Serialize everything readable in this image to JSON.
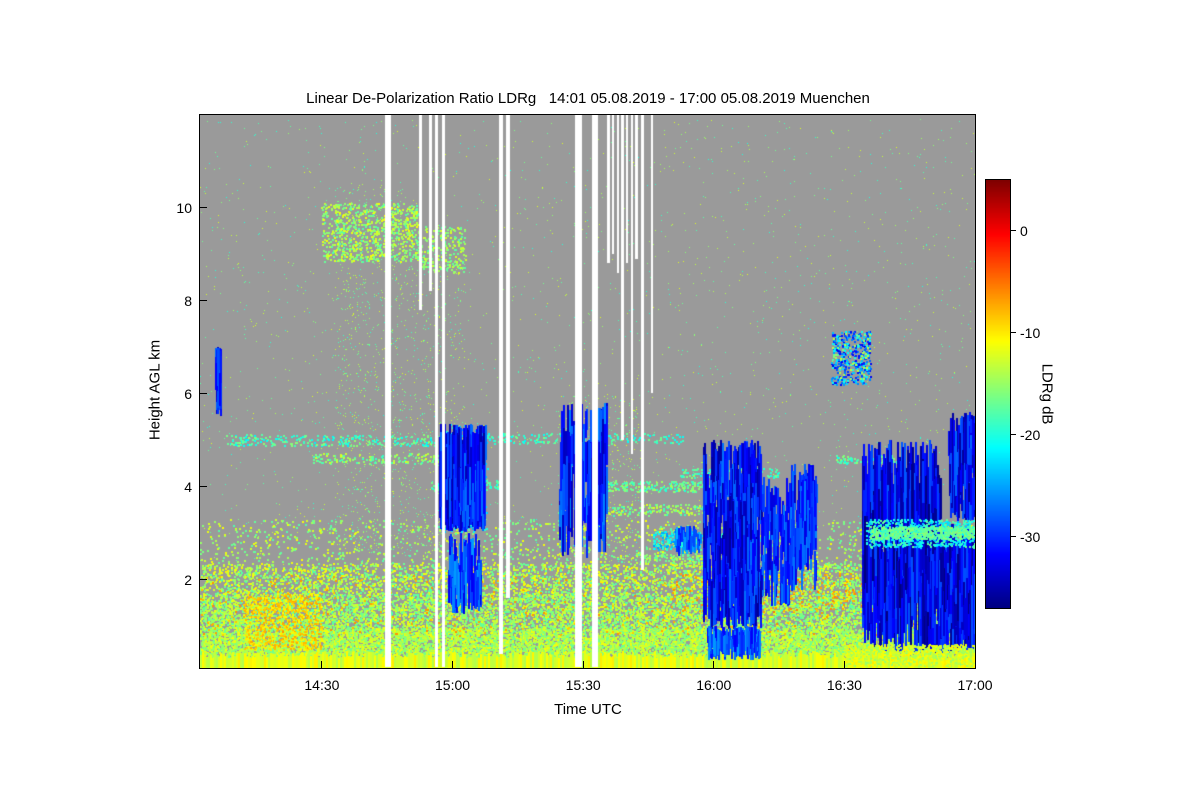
{
  "chart_data": {
    "type": "heatmap",
    "title": "Linear De-Polarization Ratio LDRg   14:01 05.08.2019 - 17:00 05.08.2019 Muenchen",
    "instrument_quantity": "Linear De-Polarization Ratio LDRg",
    "time_start": "14:01 05.08.2019",
    "time_end": "17:00 05.08.2019",
    "station": "Muenchen",
    "xlabel": "Time UTC",
    "ylabel": "Height AGL km",
    "x_axis": {
      "range_minutes": [
        2,
        180
      ],
      "ticks": [
        {
          "label": "14:30",
          "min": 30
        },
        {
          "label": "15:00",
          "min": 60
        },
        {
          "label": "15:30",
          "min": 90
        },
        {
          "label": "16:00",
          "min": 120
        },
        {
          "label": "16:30",
          "min": 150
        },
        {
          "label": "17:00",
          "min": 180
        }
      ]
    },
    "y_axis": {
      "range_km": [
        0.1,
        12.0
      ],
      "ticks": [
        {
          "label": "2",
          "km": 2
        },
        {
          "label": "4",
          "km": 4
        },
        {
          "label": "6",
          "km": 6
        },
        {
          "label": "8",
          "km": 8
        },
        {
          "label": "10",
          "km": 10
        }
      ]
    },
    "colorbar": {
      "label": "LDRg dB",
      "unit": "dB",
      "colormap": "jet",
      "vmin": -37,
      "vmax": 5,
      "ticks": [
        {
          "label": "0",
          "value": 0
        },
        {
          "label": "-10",
          "value": -10
        },
        {
          "label": "-20",
          "value": -20
        },
        {
          "label": "-30",
          "value": -30
        }
      ]
    },
    "no_data_color": "#9a9a9a",
    "gap_color": "#ffffff",
    "features": {
      "base_strip": {
        "t": [
          2,
          180
        ],
        "h": [
          0.1,
          0.3
        ],
        "v": [
          -14,
          -10
        ]
      },
      "speckle": [
        {
          "name": "boundary-layer-low",
          "t": [
            2,
            180
          ],
          "h": [
            0.25,
            0.95
          ],
          "v": [
            -17,
            -11
          ],
          "n": 13000,
          "size": 2
        },
        {
          "name": "boundary-layer-mid",
          "t": [
            2,
            180
          ],
          "h": [
            0.95,
            1.7
          ],
          "v": [
            -18,
            -11
          ],
          "n": 7500,
          "size": 2
        },
        {
          "name": "boundary-layer-top",
          "t": [
            2,
            180
          ],
          "h": [
            1.7,
            2.35
          ],
          "v": [
            -18,
            -10
          ],
          "n": 3800,
          "size": 2
        },
        {
          "name": "orange-patch-1415",
          "t": [
            12,
            30
          ],
          "h": [
            0.5,
            1.7
          ],
          "v": [
            -11,
            -7
          ],
          "n": 650,
          "size": 2
        },
        {
          "name": "orange-specks",
          "t": [
            2,
            180
          ],
          "h": [
            0.8,
            2.1
          ],
          "v": [
            -9,
            -6
          ],
          "n": 420,
          "size": 2
        },
        {
          "name": "orange-specks-16h",
          "t": [
            110,
            166
          ],
          "h": [
            1.3,
            2.15
          ],
          "v": [
            -9,
            -5
          ],
          "n": 240,
          "size": 2
        },
        {
          "name": "residual-layer",
          "t": [
            2,
            180
          ],
          "h": [
            2.35,
            3.3
          ],
          "v": [
            -18,
            -11
          ],
          "n": 1300,
          "size": 2
        },
        {
          "name": "clear-air",
          "t": [
            2,
            180
          ],
          "h": [
            0.5,
            11.9
          ],
          "v": [
            -20,
            -12
          ],
          "n": 2600,
          "size": 1
        },
        {
          "name": "column-1435",
          "t": [
            33,
            50
          ],
          "h": [
            2.5,
            10.5
          ],
          "v": [
            -19,
            -12
          ],
          "n": 850,
          "size": 1
        },
        {
          "name": "column-1455",
          "t": [
            50,
            63
          ],
          "h": [
            2.5,
            9.0
          ],
          "v": [
            -19,
            -12
          ],
          "n": 420,
          "size": 1
        },
        {
          "name": "column-1535",
          "t": [
            84,
            104
          ],
          "h": [
            2.4,
            6.0
          ],
          "v": [
            -19,
            -12
          ],
          "n": 480,
          "size": 1
        },
        {
          "name": "patch-9km",
          "t": [
            30,
            52
          ],
          "h": [
            8.85,
            10.1
          ],
          "v": [
            -18,
            -11
          ],
          "n": 800,
          "size": 2
        },
        {
          "name": "patch-9km-b",
          "t": [
            52,
            63
          ],
          "h": [
            8.6,
            9.6
          ],
          "v": [
            -18,
            -12
          ],
          "n": 240,
          "size": 2
        },
        {
          "name": "cloud-edge-1500",
          "t": [
            57,
            68
          ],
          "h": [
            3.0,
            5.35
          ],
          "v": [
            -25,
            -19
          ],
          "n": 240,
          "size": 2
        },
        {
          "name": "patch-7km-1630",
          "t": [
            147,
            156
          ],
          "h": [
            6.2,
            7.35
          ],
          "v": [
            -33,
            -20
          ],
          "n": 400,
          "size": 2
        },
        {
          "name": "patch-7km-green",
          "t": [
            147,
            156
          ],
          "h": [
            6.3,
            7.3
          ],
          "v": [
            -18,
            -12
          ],
          "n": 55,
          "size": 2
        },
        {
          "name": "pre1600-cyan",
          "t": [
            106,
            117
          ],
          "h": [
            2.65,
            3.05
          ],
          "v": [
            -26,
            -18
          ],
          "n": 200,
          "size": 2
        }
      ],
      "layers": [
        {
          "name": "layer-5km-a",
          "t": [
            8,
            56
          ],
          "h": [
            4.88,
            5.12
          ],
          "v": [
            -22,
            -15
          ],
          "n": 250,
          "size": 2
        },
        {
          "name": "layer-5km-b",
          "t": [
            56,
            113
          ],
          "h": [
            4.92,
            5.15
          ],
          "v": [
            -22,
            -16
          ],
          "n": 190,
          "size": 2
        },
        {
          "name": "layer-4p6km",
          "t": [
            28,
            61
          ],
          "h": [
            4.5,
            4.72
          ],
          "v": [
            -19,
            -12
          ],
          "n": 160,
          "size": 2
        },
        {
          "name": "layer-4p6km-b",
          "t": [
            148,
            164
          ],
          "h": [
            4.5,
            4.68
          ],
          "v": [
            -21,
            -15
          ],
          "n": 110,
          "size": 2
        },
        {
          "name": "layer-4km-a",
          "t": [
            55,
            71
          ],
          "h": [
            3.93,
            4.15
          ],
          "v": [
            -21,
            -16
          ],
          "n": 140,
          "size": 2
        },
        {
          "name": "layer-4km-b",
          "t": [
            94,
            123
          ],
          "h": [
            3.9,
            4.12
          ],
          "v": [
            -20,
            -14
          ],
          "n": 230,
          "size": 2
        },
        {
          "name": "layer-4p3km",
          "t": [
            112,
            135
          ],
          "h": [
            4.2,
            4.4
          ],
          "v": [
            -21,
            -15
          ],
          "n": 120,
          "size": 2
        },
        {
          "name": "layer-3p5km",
          "t": [
            92,
            127
          ],
          "h": [
            3.38,
            3.62
          ],
          "v": [
            -19,
            -12
          ],
          "n": 250,
          "size": 2
        },
        {
          "name": "layer-2p9km",
          "t": [
            113,
            135
          ],
          "h": [
            2.8,
            3.0
          ],
          "v": [
            -22,
            -16
          ],
          "n": 130,
          "size": 2
        },
        {
          "name": "layer-2p5km",
          "t": [
            103,
            118
          ],
          "h": [
            2.35,
            2.55
          ],
          "v": [
            -18,
            -12
          ],
          "n": 100,
          "size": 2
        }
      ],
      "clouds": [
        {
          "name": "virga-1405",
          "t": [
            5.6,
            6.8
          ],
          "h": [
            5.5,
            7.0
          ],
          "v": [
            -34,
            -27
          ],
          "n": 70,
          "len": [
            0.3,
            0.9
          ],
          "w": 2
        },
        {
          "name": "cloud-1500",
          "t": [
            57,
            67.5
          ],
          "h": [
            3.0,
            5.35
          ],
          "v": [
            -36,
            -27
          ],
          "n": 420,
          "len": [
            0.3,
            1.4
          ],
          "w": 2
        },
        {
          "name": "cloud-1500-tails",
          "t": [
            59,
            66.5
          ],
          "h": [
            1.25,
            3.0
          ],
          "v": [
            -33,
            -25
          ],
          "n": 120,
          "len": [
            0.3,
            0.9
          ],
          "w": 2
        },
        {
          "name": "cloud-1530",
          "t": [
            84.5,
            95.5
          ],
          "h": [
            2.4,
            5.8
          ],
          "v": [
            -35,
            -26
          ],
          "n": 180,
          "len": [
            0.4,
            1.5
          ],
          "w": 2
        },
        {
          "name": "cloud-1600",
          "t": [
            117.5,
            131
          ],
          "h": [
            0.9,
            5.0
          ],
          "v": [
            -36,
            -27
          ],
          "n": 460,
          "len": [
            0.3,
            1.3
          ],
          "w": 2
        },
        {
          "name": "cloud-1600-tails",
          "t": [
            118.5,
            130.5
          ],
          "h": [
            0.25,
            1.0
          ],
          "v": [
            -32,
            -25
          ],
          "n": 130,
          "len": [
            0.2,
            0.6
          ],
          "w": 2
        },
        {
          "name": "cloud-1600-edge",
          "t": [
            131,
            137.5
          ],
          "h": [
            1.4,
            4.2
          ],
          "v": [
            -34,
            -26
          ],
          "n": 100,
          "len": [
            0.3,
            1.0
          ],
          "w": 2
        },
        {
          "name": "streak-1620",
          "t": [
            137.5,
            143.5
          ],
          "h": [
            1.7,
            4.5
          ],
          "v": [
            -34,
            -26
          ],
          "n": 120,
          "len": [
            0.3,
            1.1
          ],
          "w": 2
        },
        {
          "name": "pre1600-blue",
          "t": [
            111,
            117
          ],
          "h": [
            2.5,
            3.15
          ],
          "v": [
            -31,
            -24
          ],
          "n": 60,
          "len": [
            0.15,
            0.45
          ],
          "w": 2
        },
        {
          "name": "big-cloud",
          "t": [
            154,
            172
          ],
          "h": [
            0.4,
            5.0
          ],
          "v": [
            -37,
            -28
          ],
          "n": 680,
          "len": [
            0.4,
            1.8
          ],
          "w": 2
        },
        {
          "name": "big-cloud-late",
          "t": [
            172,
            180
          ],
          "h": [
            0.4,
            3.2
          ],
          "v": [
            -37,
            -28
          ],
          "n": 290,
          "len": [
            0.4,
            1.5
          ],
          "w": 2
        },
        {
          "name": "big-cloud-top",
          "t": [
            174,
            180
          ],
          "h": [
            3.2,
            5.6
          ],
          "v": [
            -36,
            -27
          ],
          "n": 150,
          "len": [
            0.3,
            1.2
          ],
          "w": 2
        }
      ],
      "post_speckle": [
        {
          "name": "cyan-band-halo",
          "t": [
            155,
            180
          ],
          "h": [
            2.7,
            3.3
          ],
          "v": [
            -24,
            -17
          ],
          "n": 600,
          "size": 2
        },
        {
          "name": "cyan-band-core",
          "t": [
            156,
            180
          ],
          "h": [
            2.88,
            3.14
          ],
          "v": [
            -19,
            -15
          ],
          "n": 650,
          "size": 2
        },
        {
          "name": "surface-overlay-east",
          "t": [
            150,
            180
          ],
          "h": [
            0.15,
            0.6
          ],
          "v": [
            -15,
            -10
          ],
          "n": 800,
          "size": 2
        }
      ],
      "gaps": [
        [
          44.5,
          45.9,
          0.12
        ],
        [
          52.4,
          53.0,
          7.8
        ],
        [
          54.6,
          55.3,
          8.2
        ],
        [
          56.0,
          56.8,
          0.12
        ],
        [
          57.6,
          58.3,
          0.12
        ],
        [
          70.8,
          71.6,
          0.4
        ],
        [
          72.5,
          73.2,
          1.6
        ],
        [
          88.3,
          89.8,
          0.12
        ],
        [
          92.2,
          93.6,
          0.12
        ],
        [
          95.7,
          96.3,
          8.8
        ],
        [
          96.8,
          97.3,
          9.0
        ],
        [
          97.8,
          98.4,
          8.6
        ],
        [
          98.9,
          99.4,
          5.0
        ],
        [
          99.9,
          100.5,
          8.8
        ],
        [
          101.0,
          101.6,
          4.7
        ],
        [
          102.1,
          102.8,
          8.9
        ],
        [
          103.3,
          104.0,
          2.2
        ],
        [
          105.6,
          106.2,
          6.0
        ]
      ]
    }
  }
}
